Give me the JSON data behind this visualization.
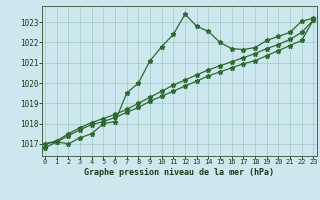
{
  "title": "Graphe pression niveau de la mer (hPa)",
  "bg_color": "#cce8ee",
  "grid_color": "#aacccc",
  "line_color": "#2d6a2d",
  "x_labels": [
    "0",
    "1",
    "2",
    "3",
    "4",
    "5",
    "6",
    "7",
    "8",
    "9",
    "10",
    "11",
    "12",
    "13",
    "14",
    "15",
    "16",
    "17",
    "18",
    "19",
    "20",
    "21",
    "22",
    "23"
  ],
  "line1": [
    1016.8,
    1017.1,
    1017.0,
    1017.3,
    1017.5,
    1018.0,
    1018.1,
    1019.5,
    1020.0,
    1021.1,
    1021.8,
    1022.4,
    1023.4,
    1022.8,
    1022.55,
    1022.0,
    1021.7,
    1021.65,
    1021.75,
    1022.1,
    1022.3,
    1022.5,
    1023.05,
    1023.2
  ],
  "line2": [
    1017.0,
    1017.1,
    1017.4,
    1017.7,
    1017.95,
    1018.1,
    1018.3,
    1018.55,
    1018.8,
    1019.1,
    1019.35,
    1019.6,
    1019.85,
    1020.1,
    1020.35,
    1020.55,
    1020.75,
    1020.95,
    1021.1,
    1021.35,
    1021.6,
    1021.85,
    1022.1,
    1023.1
  ],
  "line3": [
    1017.0,
    1017.15,
    1017.5,
    1017.8,
    1018.05,
    1018.25,
    1018.45,
    1018.7,
    1019.0,
    1019.3,
    1019.6,
    1019.9,
    1020.15,
    1020.4,
    1020.65,
    1020.85,
    1021.05,
    1021.25,
    1021.45,
    1021.7,
    1021.9,
    1022.15,
    1022.5,
    1023.1
  ],
  "ylim": [
    1016.4,
    1023.8
  ],
  "yticks": [
    1017,
    1018,
    1019,
    1020,
    1021,
    1022,
    1023
  ],
  "figw": 3.2,
  "figh": 2.0,
  "dpi": 100
}
